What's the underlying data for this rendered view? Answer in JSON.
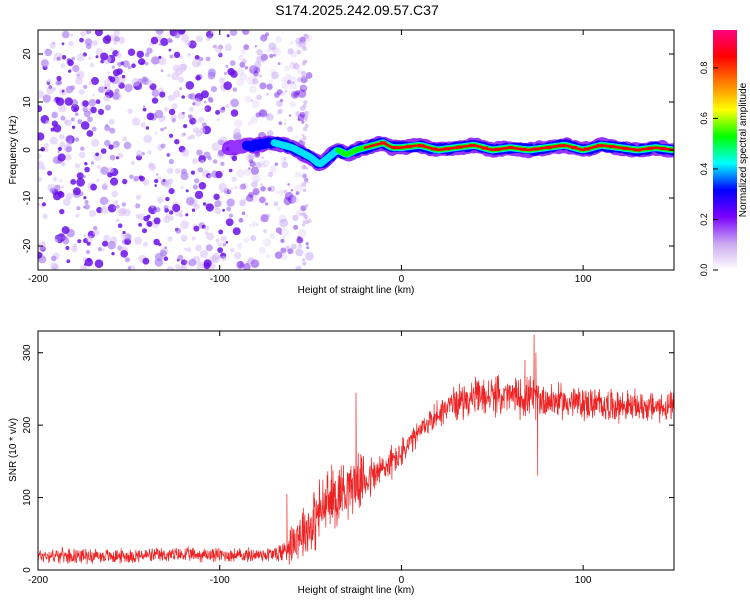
{
  "title": "S174.2025.242.09.57.C37",
  "chart_data": [
    {
      "type": "heatmap",
      "xlabel": "Height of straight line (km)",
      "ylabel": "Frequency (Hz)",
      "xlim": [
        -200,
        150
      ],
      "ylim": [
        -25,
        25
      ],
      "x_ticks": [
        -200,
        -100,
        0,
        100
      ],
      "y_ticks": [
        -20,
        -10,
        0,
        10,
        20
      ],
      "x_tick_labels": [
        "-200",
        "-100",
        "0",
        "100"
      ],
      "y_tick_labels": [
        "-20",
        "-10",
        "0",
        "10",
        "20"
      ],
      "noise_region_x": [
        -200,
        -55
      ],
      "signal_trace": {
        "x": [
          -95,
          -80,
          -70,
          -60,
          -55,
          -50,
          -45,
          -40,
          -35,
          -30,
          -25,
          -20,
          -15,
          -10,
          -5,
          0,
          10,
          20,
          30,
          40,
          50,
          60,
          70,
          80,
          90,
          100,
          110,
          120,
          130,
          140,
          150
        ],
        "frequency_hz": [
          0.5,
          1.0,
          1.5,
          0.5,
          -0.5,
          -1.5,
          -3.0,
          -1.5,
          0.0,
          -1.0,
          0.0,
          0.5,
          1.0,
          1.5,
          0.5,
          0.5,
          1.0,
          0.0,
          0.5,
          1.0,
          0.0,
          0.5,
          0.0,
          0.5,
          1.0,
          0.0,
          1.0,
          0.5,
          0.0,
          0.5,
          0.0
        ]
      },
      "colorbar": {
        "label": "Normalized spectral amplitude",
        "range": [
          0.0,
          0.95
        ],
        "ticks": [
          0.0,
          0.2,
          0.4,
          0.6,
          0.8
        ],
        "tick_labels": [
          "0.0",
          "0.2",
          "0.4",
          "0.6",
          "0.8"
        ],
        "colors": [
          "#ffffff",
          "#c9a8f0",
          "#7a00ff",
          "#0000ff",
          "#00ffff",
          "#00ff00",
          "#ffff00",
          "#ff8000",
          "#ff0000",
          "#ff0080"
        ]
      }
    },
    {
      "type": "line",
      "xlabel": "Height of straight line (km)",
      "ylabel": "SNR (10 * v/v)",
      "xlim": [
        -200,
        150
      ],
      "ylim": [
        0,
        330
      ],
      "x_ticks": [
        -200,
        -100,
        0,
        100
      ],
      "y_ticks": [
        0,
        100,
        200,
        300
      ],
      "x_tick_labels": [
        "-200",
        "-100",
        "0",
        "100"
      ],
      "y_tick_labels": [
        "0",
        "100",
        "200",
        "300"
      ],
      "series": [
        {
          "name": "SNR",
          "color": "#ee2222",
          "x": [
            -200,
            -180,
            -160,
            -140,
            -120,
            -100,
            -90,
            -80,
            -70,
            -65,
            -60,
            -55,
            -50,
            -45,
            -40,
            -35,
            -30,
            -25,
            -20,
            -15,
            -10,
            -5,
            0,
            5,
            10,
            15,
            20,
            25,
            30,
            40,
            50,
            60,
            70,
            80,
            90,
            100,
            110,
            120,
            130,
            140,
            150
          ],
          "values": [
            20,
            20,
            19,
            20,
            21,
            21,
            20,
            21,
            22,
            25,
            40,
            55,
            60,
            80,
            95,
            105,
            115,
            120,
            125,
            130,
            140,
            150,
            160,
            175,
            190,
            205,
            215,
            225,
            232,
            238,
            240,
            240,
            238,
            235,
            232,
            230,
            228,
            227,
            226,
            225,
            224
          ],
          "noise_amplitude": [
            12,
            12,
            12,
            12,
            12,
            12,
            12,
            12,
            14,
            20,
            35,
            45,
            50,
            55,
            55,
            55,
            50,
            45,
            40,
            35,
            30,
            28,
            25,
            22,
            20,
            22,
            25,
            25,
            28,
            30,
            32,
            30,
            35,
            30,
            28,
            28,
            27,
            26,
            25,
            25,
            25
          ]
        }
      ],
      "spikes": [
        {
          "x": 73,
          "value": 325
        },
        {
          "x": 74,
          "value": 300
        },
        {
          "x": 75,
          "value": 130
        },
        {
          "x": 68,
          "value": 290
        },
        {
          "x": -25,
          "value": 245
        },
        {
          "x": -63,
          "value": 105
        }
      ]
    }
  ]
}
